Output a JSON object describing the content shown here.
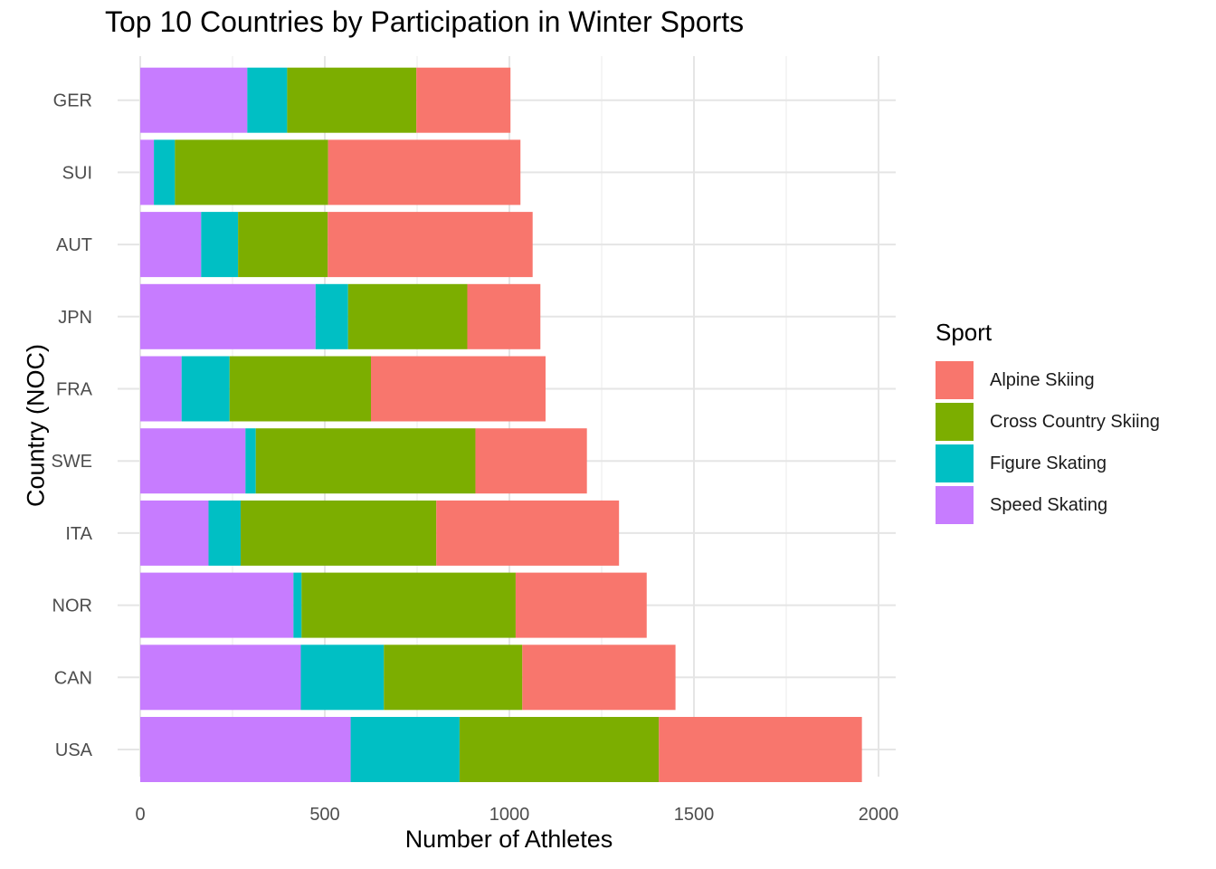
{
  "chart_data": {
    "type": "bar",
    "orientation": "horizontal",
    "stacked": true,
    "title": "Top 10 Countries by Participation in Winter Sports",
    "xlabel": "Number of Athletes",
    "ylabel": "Country (NOC)",
    "xlim": [
      0,
      2000
    ],
    "xticks": [
      "0",
      "500",
      "1000",
      "1500",
      "2000"
    ],
    "grid": true,
    "legend_position": "right",
    "legend_title": "Sport",
    "categories": [
      "USA",
      "CAN",
      "NOR",
      "ITA",
      "SWE",
      "FRA",
      "JPN",
      "AUT",
      "SUI",
      "GER"
    ],
    "series": [
      {
        "name": "Speed Skating",
        "color": "#C77CFF",
        "values": [
          570,
          435,
          415,
          185,
          285,
          112,
          475,
          165,
          37,
          290
        ]
      },
      {
        "name": "Figure Skating",
        "color": "#00BFC4",
        "values": [
          295,
          225,
          22,
          87,
          28,
          130,
          88,
          100,
          57,
          108
        ]
      },
      {
        "name": "Cross Country Skiing",
        "color": "#7CAE00",
        "values": [
          540,
          375,
          580,
          530,
          595,
          383,
          323,
          243,
          415,
          350
        ]
      },
      {
        "name": "Alpine Skiing",
        "color": "#F8766D",
        "values": [
          550,
          415,
          355,
          495,
          302,
          473,
          198,
          555,
          521,
          255
        ]
      }
    ],
    "legend_order": [
      "Alpine Skiing",
      "Cross Country Skiing",
      "Figure Skating",
      "Speed Skating"
    ]
  }
}
